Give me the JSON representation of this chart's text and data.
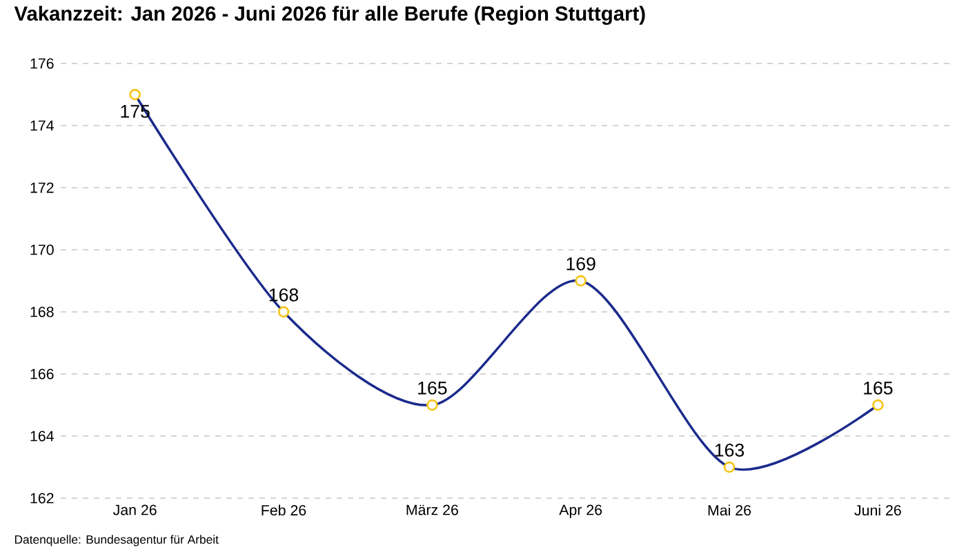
{
  "chart_data": {
    "type": "line",
    "title": "Vakanzzeit: Jan 2026 - Juni 2026 für alle Berufe (Region Stuttgart)",
    "categories": [
      "Jan 26",
      "Feb 26",
      "März 26",
      "Apr 26",
      "Mai 26",
      "Juni 26"
    ],
    "series": [
      {
        "color": "#1a2a8c",
        "colors": [
          "#f5c518",
          "#f5c518",
          "#f5c518",
          "#f5c518",
          "#f5c518",
          "#f5c518"
        ],
        "values": [
          175,
          168,
          165,
          169,
          163,
          165
        ]
      }
    ],
    "ylim": [
      162,
      176
    ],
    "yticks": [
      162,
      164,
      166,
      168,
      170,
      172,
      174,
      176
    ],
    "grid": "y",
    "marker": "circle",
    "line_style": "solid",
    "data_labels": true,
    "annotations": [
      "Datenquelle: Bundesagentur für Arbeit"
    ]
  }
}
